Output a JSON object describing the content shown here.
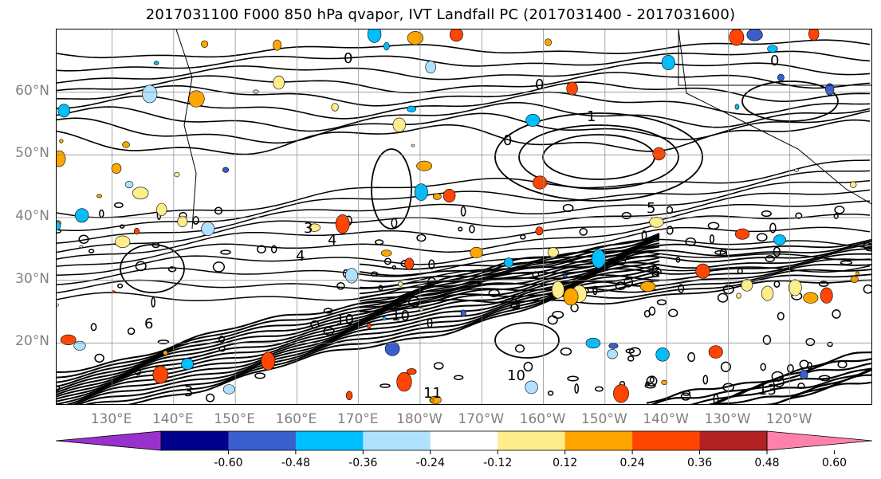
{
  "title": "2017031100 F000 850 hPa qvapor, IVT Landfall PC (2017031400 - 2017031600)",
  "chart_data": {
    "type": "heatmap",
    "title": "2017031100 F000 850 hPa qvapor, IVT Landfall PC (2017031400 - 2017031600)",
    "map": {
      "lon_labels": [
        "130°E",
        "140°E",
        "150°E",
        "160°E",
        "170°E",
        "180°W",
        "170°W",
        "160°W",
        "150°W",
        "140°W",
        "130°W",
        "120°W"
      ],
      "lat_labels": [
        "60°N",
        "50°N",
        "40°N",
        "30°N",
        "20°N"
      ],
      "lon_range": [
        121,
        253.5
      ],
      "lat_range": [
        10,
        70
      ],
      "grid": true
    },
    "colorbar": {
      "ticks": [
        "-0.60",
        "-0.48",
        "-0.36",
        "-0.24",
        "-0.12",
        "0.12",
        "0.24",
        "0.36",
        "0.48",
        "0.60"
      ],
      "colors": [
        "#9932cc",
        "#00008b",
        "#3a5fcd",
        "#00bfff",
        "#b0e2ff",
        "#ffffff",
        "#ffec8b",
        "#ffa500",
        "#ff4500",
        "#b22222",
        "#ff82ab"
      ],
      "extend": "both"
    },
    "contour_labels": [
      "0",
      "0",
      "0",
      "0",
      "1",
      "3",
      "3",
      "4",
      "4",
      "5",
      "6",
      "8",
      "10",
      "10",
      "10",
      "11",
      "13"
    ]
  }
}
